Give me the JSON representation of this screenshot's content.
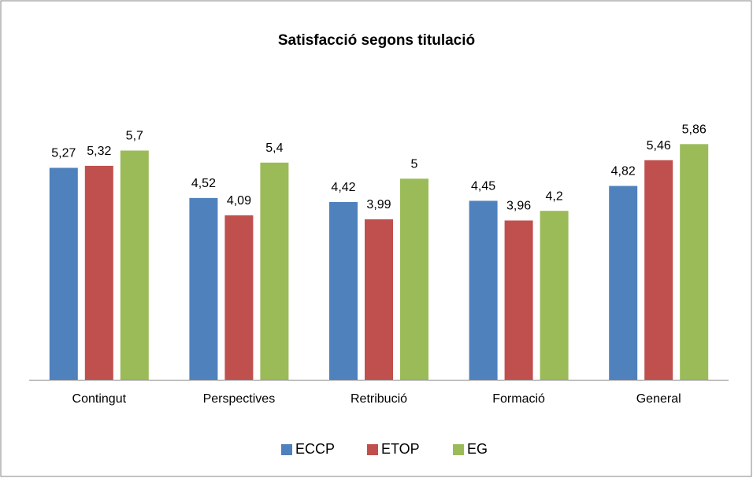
{
  "chart_data": {
    "type": "bar",
    "title": "Satisfacció segons titulació",
    "categories": [
      "Contingut",
      "Perspectives",
      "Retribució",
      "Formació",
      "General"
    ],
    "series": [
      {
        "name": "ECCP",
        "color": "#4f81bd",
        "values": [
          5.27,
          4.52,
          4.42,
          4.45,
          4.82
        ],
        "value_labels": [
          "5,27",
          "4,52",
          "4,42",
          "4,45",
          "4,82"
        ]
      },
      {
        "name": "ETOP",
        "color": "#c0504d",
        "values": [
          5.32,
          4.09,
          3.99,
          3.96,
          5.46
        ],
        "value_labels": [
          "5,32",
          "4,09",
          "3,99",
          "3,96",
          "5,46"
        ]
      },
      {
        "name": "EG",
        "color": "#9bbb59",
        "values": [
          5.7,
          5.4,
          5,
          4.2,
          5.86
        ],
        "value_labels": [
          "5,7",
          "5,4",
          "5",
          "4,2",
          "5,86"
        ]
      }
    ],
    "ylim": [
      0,
      7
    ],
    "legend": "bottom"
  }
}
